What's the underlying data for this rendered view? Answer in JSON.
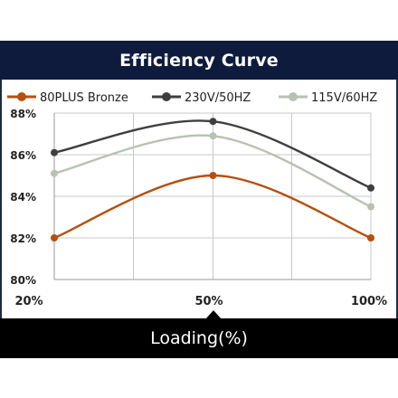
{
  "chart_data": {
    "type": "line",
    "title": "Efficiency Curve",
    "xlabel": "Loading(%)",
    "ylabel": "",
    "categories": [
      "20%",
      "50%",
      "100%"
    ],
    "y_ticks": [
      "80%",
      "82%",
      "84%",
      "86%",
      "88%"
    ],
    "ylim": [
      80,
      88
    ],
    "grid": true,
    "legend_position": "top",
    "series": [
      {
        "name": "80PLUS Bronze",
        "values": [
          82,
          85,
          82
        ],
        "color": "#b5500f"
      },
      {
        "name": "230V/50HZ",
        "values": [
          86.1,
          87.6,
          84.4
        ],
        "color": "#3f3f3f"
      },
      {
        "name": "115V/60HZ",
        "values": [
          85.1,
          86.9,
          83.5
        ],
        "color": "#b7c2b1"
      }
    ]
  }
}
